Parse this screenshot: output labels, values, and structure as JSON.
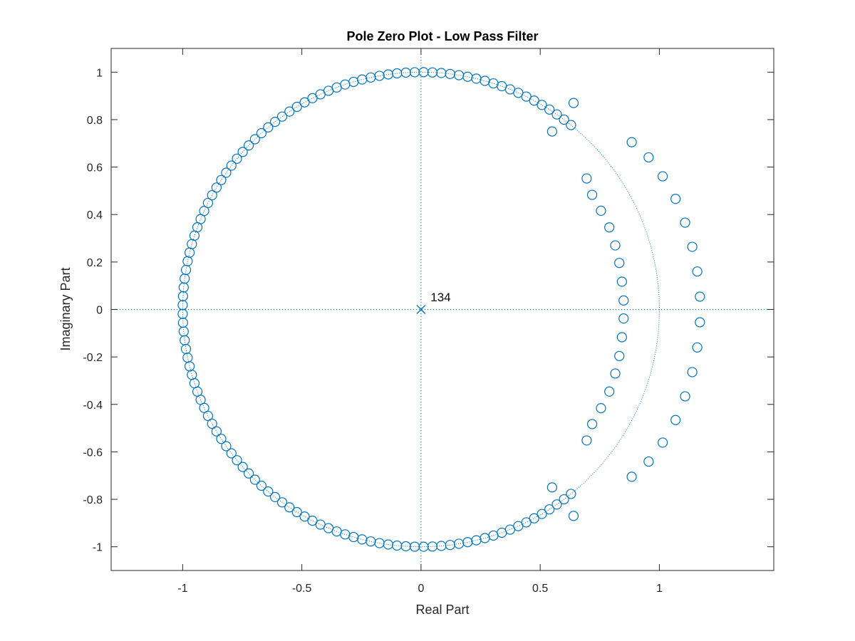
{
  "chart_data": {
    "type": "scatter",
    "title": "Pole Zero Plot - Low Pass Filter",
    "xlabel": "Real Part",
    "ylabel": "Imaginary Part",
    "xlim": [
      -1.3,
      1.48
    ],
    "ylim": [
      -1.1,
      1.1
    ],
    "xticks": [
      -1,
      -0.5,
      0,
      0.5,
      1
    ],
    "xtick_labels": [
      "-1",
      "-0.5",
      "0",
      "0.5",
      "1"
    ],
    "yticks": [
      -1,
      -0.8,
      -0.6,
      -0.4,
      -0.2,
      0,
      0.2,
      0.4,
      0.6,
      0.8,
      1
    ],
    "ytick_labels": [
      "-1",
      "-0.8",
      "-0.6",
      "-0.4",
      "-0.2",
      "0",
      "0.2",
      "0.4",
      "0.6",
      "0.8",
      "1"
    ],
    "grid": false,
    "unit_circle": true,
    "color": "#0072BD",
    "zeros_unit_circle": {
      "count": 122,
      "angle_start_deg": 51,
      "angle_end_deg": 309
    },
    "zeros": [
      [
        0.64,
        0.87
      ],
      [
        0.64,
        -0.87
      ],
      [
        0.55,
        0.75
      ],
      [
        0.55,
        -0.75
      ],
      [
        0.695,
        0.552
      ],
      [
        0.695,
        -0.552
      ],
      [
        0.718,
        0.483
      ],
      [
        0.718,
        -0.483
      ],
      [
        0.755,
        0.416
      ],
      [
        0.755,
        -0.416
      ],
      [
        0.79,
        0.346
      ],
      [
        0.79,
        -0.346
      ],
      [
        0.815,
        0.27
      ],
      [
        0.815,
        -0.27
      ],
      [
        0.832,
        0.196
      ],
      [
        0.832,
        -0.196
      ],
      [
        0.843,
        0.117
      ],
      [
        0.843,
        -0.117
      ],
      [
        0.85,
        0.038
      ],
      [
        0.85,
        -0.038
      ],
      [
        0.884,
        0.705
      ],
      [
        0.884,
        -0.705
      ],
      [
        0.955,
        0.641
      ],
      [
        0.955,
        -0.641
      ],
      [
        1.014,
        0.561
      ],
      [
        1.014,
        -0.561
      ],
      [
        1.068,
        0.466
      ],
      [
        1.068,
        -0.466
      ],
      [
        1.108,
        0.366
      ],
      [
        1.108,
        -0.366
      ],
      [
        1.138,
        0.264
      ],
      [
        1.138,
        -0.264
      ],
      [
        1.159,
        0.16
      ],
      [
        1.159,
        -0.16
      ],
      [
        1.17,
        0.054
      ],
      [
        1.17,
        -0.054
      ]
    ],
    "poles": [
      [
        0,
        0
      ]
    ],
    "annotations": [
      {
        "text": "134",
        "x": 0.04,
        "y": 0.035
      }
    ]
  }
}
